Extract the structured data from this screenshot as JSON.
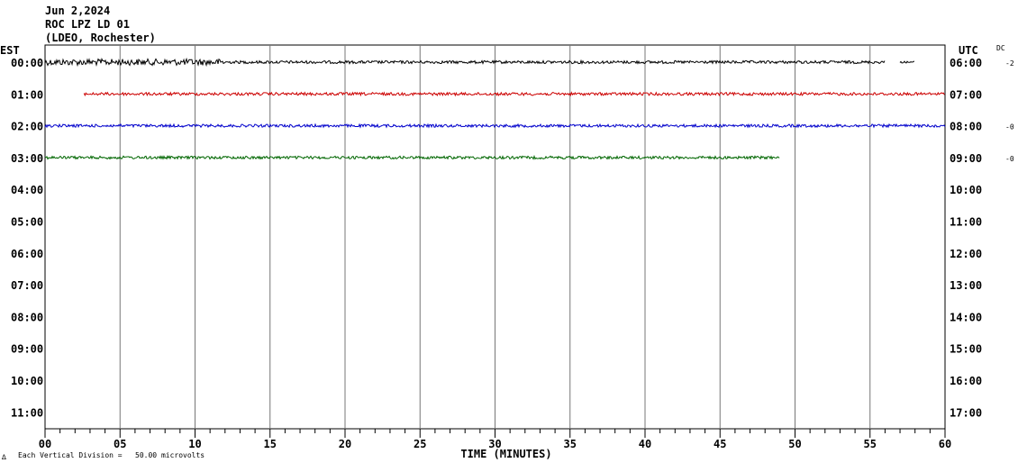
{
  "header": {
    "date": "Jun 2,2024",
    "station": "ROC LPZ LD 01",
    "network": "(LDEO, Rochester)"
  },
  "left_tz": "EST",
  "right_tz": "UTC",
  "dc_label": "DC",
  "footer": {
    "scale_text": "Each Vertical Division =   50.00 microvolts",
    "mark": "∆"
  },
  "chart_data": {
    "type": "line",
    "title": "",
    "xlabel": "TIME (MINUTES)",
    "ylabel": "",
    "xlim": [
      0,
      60
    ],
    "x_ticks": [
      "00",
      "05",
      "10",
      "15",
      "20",
      "25",
      "30",
      "35",
      "40",
      "45",
      "50",
      "55",
      "60"
    ],
    "rows_est": [
      "00:00",
      "01:00",
      "02:00",
      "03:00",
      "04:00",
      "05:00",
      "06:00",
      "07:00",
      "08:00",
      "09:00",
      "10:00",
      "11:00"
    ],
    "rows_utc": [
      "06:00",
      "07:00",
      "08:00",
      "09:00",
      "10:00",
      "11:00",
      "12:00",
      "13:00",
      "14:00",
      "15:00",
      "16:00",
      "17:00"
    ],
    "dc_offsets": [
      "-2",
      "",
      "-0",
      "-0"
    ],
    "vertical_grid_every_min": 5,
    "minor_tick_every_min": 1,
    "series": [
      {
        "row": 0,
        "color": "#000000",
        "start_min": 0.0,
        "end_min": 56.0,
        "extra_segment": [
          57.0,
          58.0
        ]
      },
      {
        "row": 1,
        "color": "#cc0000",
        "start_min": 2.6,
        "end_min": 60.0
      },
      {
        "row": 2,
        "color": "#0000cc",
        "start_min": 0.0,
        "end_min": 60.0
      },
      {
        "row": 3,
        "color": "#006600",
        "start_min": 0.0,
        "end_min": 49.0
      }
    ]
  }
}
